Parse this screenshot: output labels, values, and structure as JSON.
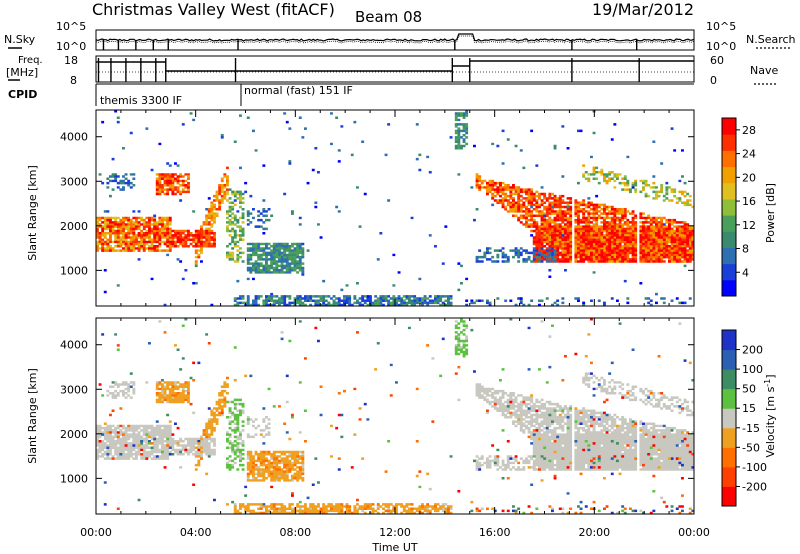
{
  "header": {
    "station": "Christmas Valley West (fitACF)",
    "beam": "Beam 08",
    "date": "19/Mar/2012"
  },
  "strip_labels": {
    "nsky": "N.Sky",
    "nsearch": "N.Search",
    "freq_line1": "Freq.",
    "freq_line2": "[MHz]",
    "nave": "Nave",
    "cpid": "CPID",
    "noise_ticks": [
      "10^5",
      "10^0"
    ],
    "freq_ticks": [
      "18",
      "8"
    ],
    "nave_ticks": [
      "60",
      "0"
    ]
  },
  "cpid_segments": [
    {
      "label": "themis 3300 IF",
      "start": "00:00",
      "end": "06:00"
    },
    {
      "label": "normal (fast) 151 IF",
      "start": "06:00",
      "end": "24:00"
    }
  ],
  "chart_data": [
    {
      "type": "heatmap",
      "title": "Power",
      "xlabel": "",
      "ylabel": "Slant Range [km]",
      "x_range_hours": [
        0,
        24
      ],
      "ylim": [
        200,
        4600
      ],
      "yticks": [
        1000,
        2000,
        3000,
        4000
      ],
      "colorbar": {
        "label": "Power [dB]",
        "ticks": [
          4,
          8,
          12,
          16,
          20,
          24,
          28
        ],
        "range": [
          0,
          30
        ],
        "colors": [
          "#0000ff",
          "#1a3fd9",
          "#2e6fb2",
          "#3a8a70",
          "#4aa05a",
          "#8fbf3a",
          "#e0c020",
          "#f0a000",
          "#ff7000",
          "#ff3000",
          "#ff0000"
        ]
      }
    },
    {
      "type": "heatmap",
      "title": "Velocity",
      "xlabel": "Time UT",
      "ylabel": "Slant Range [km]",
      "x_range_hours": [
        0,
        24
      ],
      "ylim": [
        200,
        4600
      ],
      "yticks": [
        1000,
        2000,
        3000,
        4000
      ],
      "xticks": [
        "00:00",
        "04:00",
        "08:00",
        "12:00",
        "16:00",
        "20:00",
        "00:00"
      ],
      "colorbar": {
        "label": "Velocity [m s^-1]",
        "ticks": [
          "200",
          "100",
          "50",
          "15",
          "-15",
          "-50",
          "-100",
          "-200"
        ],
        "colors": [
          "#1e32c8",
          "#2a5fb4",
          "#3c8c64",
          "#5cc040",
          "#c8c8c0",
          "#f0a020",
          "#ff7000",
          "#ff4000",
          "#ff0000"
        ]
      }
    }
  ]
}
